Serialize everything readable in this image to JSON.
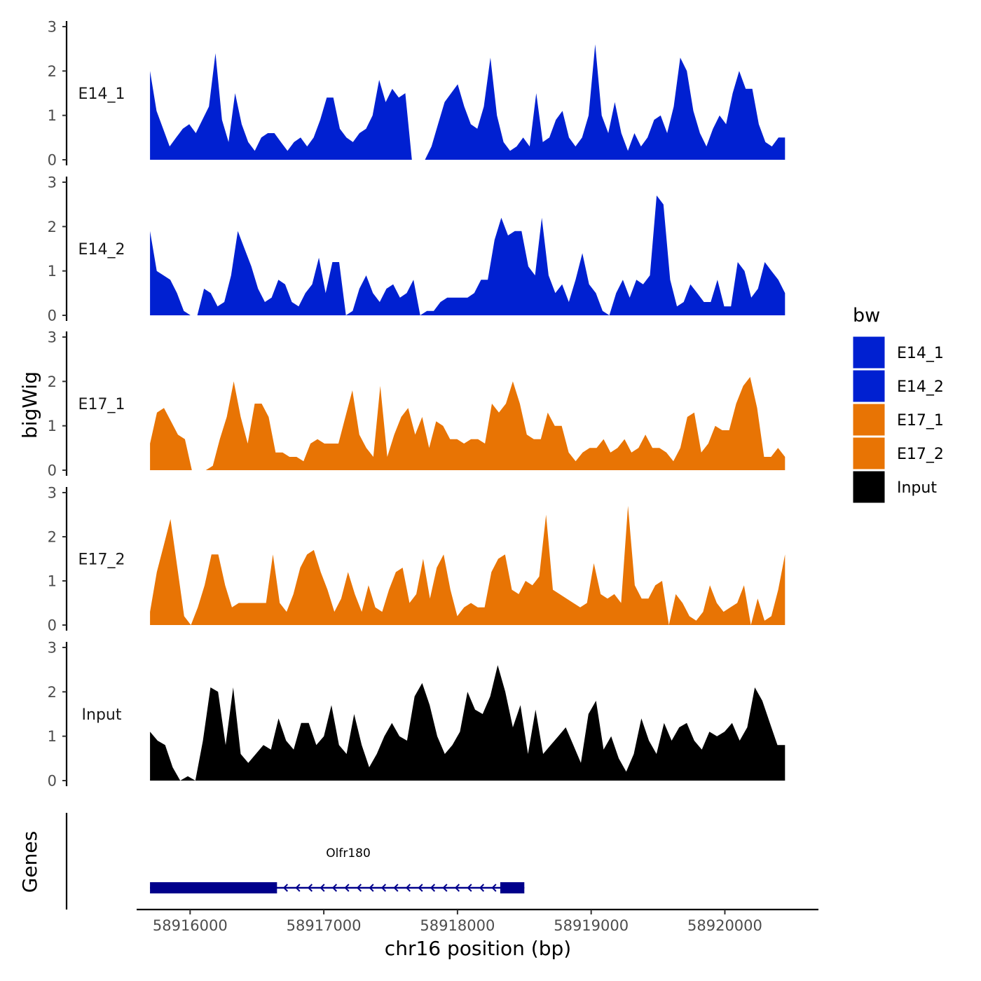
{
  "chart_data": {
    "type": "area",
    "title": "",
    "ylabel": "bigWig",
    "xlabel": "chr16 position (bp)",
    "gene_panel_label": "Genes",
    "legend_title": "bw",
    "legend_position": "right",
    "grid": false,
    "xlim": [
      58915600,
      58920700
    ],
    "data_range": [
      58915700,
      58920450
    ],
    "ylim": [
      0,
      3
    ],
    "y_ticks": [
      0,
      1,
      2,
      3
    ],
    "x_ticks": [
      58916000,
      58917000,
      58918000,
      58919000,
      58920000
    ],
    "x_tick_labels": [
      "58916000",
      "58917000",
      "58918000",
      "58919000",
      "58920000"
    ],
    "tracks": [
      {
        "name": "E14_1",
        "color": "#0020D1",
        "values": [
          2.0,
          1.1,
          0.7,
          0.3,
          0.5,
          0.7,
          0.8,
          0.6,
          0.9,
          1.2,
          2.4,
          0.9,
          0.4,
          1.5,
          0.8,
          0.4,
          0.2,
          0.5,
          0.6,
          0.6,
          0.4,
          0.2,
          0.4,
          0.5,
          0.3,
          0.5,
          0.9,
          1.4,
          1.4,
          0.7,
          0.5,
          0.4,
          0.6,
          0.7,
          1.0,
          1.8,
          1.3,
          1.6,
          1.4,
          1.5,
          0.6,
          0.1,
          0.0,
          0.3,
          0.8,
          1.3,
          1.5,
          1.7,
          1.2,
          0.8,
          0.7,
          1.2,
          2.3,
          1.0,
          0.4,
          0.2,
          0.3,
          0.5,
          0.3,
          1.5,
          0.4,
          0.5,
          0.9,
          1.1,
          0.5,
          0.3,
          0.5,
          1.0,
          2.6,
          1.0,
          0.6,
          1.3,
          0.6,
          0.2,
          0.6,
          0.3,
          0.5,
          0.9,
          1.0,
          0.6,
          1.2,
          2.3,
          2.0,
          1.1,
          0.6,
          0.3,
          0.7,
          1.0,
          0.8,
          1.5,
          2.0,
          1.6,
          1.6,
          0.8,
          0.4,
          0.3,
          0.5,
          0.5
        ],
        "gaps": [
          [
            58917650,
            58917750
          ]
        ]
      },
      {
        "name": "E14_2",
        "color": "#0020D1",
        "values": [
          1.9,
          1.0,
          0.9,
          0.8,
          0.5,
          0.1,
          0.0,
          0.3,
          0.6,
          0.5,
          0.2,
          0.3,
          0.9,
          1.9,
          1.5,
          1.1,
          0.6,
          0.3,
          0.4,
          0.8,
          0.7,
          0.3,
          0.2,
          0.5,
          0.7,
          1.3,
          0.5,
          1.2,
          1.2,
          0.3,
          0.1,
          0.6,
          0.9,
          0.5,
          0.3,
          0.6,
          0.7,
          0.4,
          0.5,
          0.8,
          0.6,
          0.1,
          0.1,
          0.3,
          0.4,
          0.4,
          0.4,
          0.4,
          0.5,
          0.8,
          0.8,
          1.7,
          2.2,
          1.8,
          1.9,
          1.9,
          1.1,
          0.9,
          2.2,
          0.9,
          0.5,
          0.7,
          0.3,
          0.8,
          1.4,
          0.7,
          0.5,
          0.1,
          0.1,
          0.5,
          0.8,
          0.4,
          0.8,
          0.7,
          0.9,
          2.7,
          2.5,
          0.8,
          0.2,
          0.3,
          0.7,
          0.5,
          0.3,
          0.3,
          0.8,
          0.2,
          0.2,
          1.2,
          1.0,
          0.4,
          0.6,
          1.2,
          1.0,
          0.8,
          0.5
        ],
        "gaps": [
          [
            58916030,
            58916100
          ],
          [
            58917150,
            58917200
          ],
          [
            58917680,
            58917750
          ],
          [
            58919100,
            58919150
          ]
        ]
      },
      {
        "name": "E17_1",
        "color": "#E87404",
        "values": [
          0.6,
          1.3,
          1.4,
          1.1,
          0.8,
          0.7,
          0.3,
          0.1,
          0.1,
          0.1,
          0.7,
          1.2,
          2.0,
          1.2,
          0.6,
          1.5,
          1.5,
          1.2,
          0.4,
          0.4,
          0.3,
          0.3,
          0.2,
          0.6,
          0.7,
          0.6,
          0.6,
          0.6,
          1.2,
          1.8,
          0.8,
          0.5,
          0.3,
          1.9,
          0.3,
          0.8,
          1.2,
          1.4,
          0.8,
          1.2,
          0.5,
          1.1,
          1.0,
          0.7,
          0.7,
          0.6,
          0.7,
          0.7,
          0.6,
          1.5,
          1.3,
          1.5,
          2.0,
          1.5,
          0.8,
          0.7,
          0.7,
          1.3,
          1.0,
          1.0,
          0.4,
          0.2,
          0.4,
          0.5,
          0.5,
          0.7,
          0.4,
          0.5,
          0.7,
          0.4,
          0.5,
          0.8,
          0.5,
          0.5,
          0.4,
          0.2,
          0.5,
          1.2,
          1.3,
          0.4,
          0.6,
          1.0,
          0.9,
          0.9,
          1.5,
          1.9,
          2.1,
          1.4,
          0.3,
          0.3,
          0.5,
          0.3
        ],
        "gaps": [
          [
            58916000,
            58916120
          ]
        ]
      },
      {
        "name": "E17_2",
        "color": "#E87404",
        "values": [
          0.3,
          1.2,
          1.8,
          2.4,
          1.3,
          0.2,
          0.0,
          0.4,
          0.9,
          1.6,
          1.6,
          0.9,
          0.4,
          0.5,
          0.5,
          0.5,
          0.5,
          0.5,
          1.6,
          0.5,
          0.3,
          0.7,
          1.3,
          1.6,
          1.7,
          1.2,
          0.8,
          0.3,
          0.6,
          1.2,
          0.7,
          0.3,
          0.9,
          0.4,
          0.3,
          0.8,
          1.2,
          1.3,
          0.5,
          0.7,
          1.5,
          0.6,
          1.3,
          1.6,
          0.8,
          0.2,
          0.4,
          0.5,
          0.4,
          0.4,
          1.2,
          1.5,
          1.6,
          0.8,
          0.7,
          1.0,
          0.9,
          1.1,
          2.5,
          0.8,
          0.7,
          0.6,
          0.5,
          0.4,
          0.5,
          1.4,
          0.7,
          0.6,
          0.7,
          0.5,
          2.7,
          0.9,
          0.6,
          0.6,
          0.9,
          1.0,
          1.4,
          0.7,
          0.5,
          0.2,
          0.1,
          0.3,
          0.9,
          0.5,
          0.3,
          0.4,
          0.5,
          0.9,
          1.5,
          0.6,
          0.1,
          0.2,
          0.8,
          1.6
        ],
        "gaps": [
          [
            58919550,
            58919600
          ],
          [
            58920150,
            58920200
          ]
        ]
      },
      {
        "name": "Input",
        "color": "#000000",
        "values": [
          1.1,
          0.9,
          0.8,
          0.3,
          0.0,
          0.1,
          0.5,
          0.9,
          2.1,
          2.0,
          0.8,
          2.1,
          0.6,
          0.4,
          0.6,
          0.8,
          0.7,
          1.4,
          0.9,
          0.7,
          1.3,
          1.3,
          0.8,
          1.0,
          1.7,
          0.8,
          0.6,
          1.5,
          0.8,
          0.3,
          0.6,
          1.0,
          1.3,
          1.0,
          0.9,
          1.9,
          2.2,
          1.7,
          1.0,
          0.6,
          0.8,
          1.1,
          2.0,
          1.6,
          1.5,
          1.9,
          2.6,
          2.0,
          1.2,
          1.7,
          0.6,
          1.6,
          0.6,
          0.8,
          1.0,
          1.2,
          0.8,
          0.4,
          1.5,
          1.8,
          0.7,
          1.0,
          0.5,
          0.2,
          0.6,
          1.4,
          0.9,
          0.6,
          1.3,
          0.9,
          1.2,
          1.3,
          0.9,
          0.7,
          1.1,
          1.0,
          1.1,
          1.3,
          0.9,
          1.2,
          2.1,
          1.8,
          1.3,
          0.8,
          0.8
        ],
        "gaps": [
          [
            58916000,
            58916080
          ]
        ]
      }
    ],
    "gene": {
      "name": "Olfr180",
      "start": 58915700,
      "end": 58918500,
      "strand": "-",
      "exons": [
        [
          58915700,
          58916650
        ],
        [
          58918320,
          58918500
        ]
      ],
      "color": "#00008B"
    }
  }
}
